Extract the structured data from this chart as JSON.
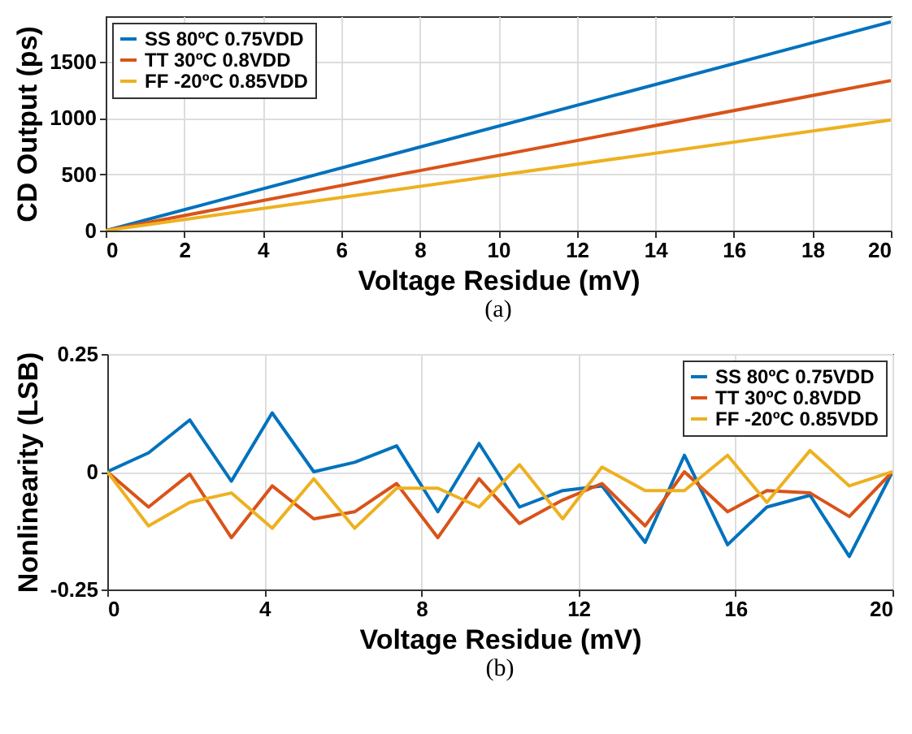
{
  "chart_data": [
    {
      "type": "line",
      "xlabel": "Voltage Residue (mV)",
      "ylabel": "CD Output (ps)",
      "annotations": [
        "(a)"
      ],
      "x": [
        0,
        20
      ],
      "series": [
        {
          "name": "SS 80ºC 0.75VDD",
          "color": "#0072bd",
          "values": [
            0,
            1850
          ]
        },
        {
          "name": "TT 30ºC 0.8VDD",
          "color": "#d95319",
          "values": [
            0,
            1330
          ]
        },
        {
          "name": "FF -20ºC 0.85VDD",
          "color": "#edb120",
          "values": [
            0,
            980
          ]
        }
      ],
      "xlim": [
        0,
        20
      ],
      "xticks": [
        0,
        2,
        4,
        6,
        8,
        10,
        12,
        14,
        16,
        18,
        20
      ],
      "ylim": [
        0,
        1900
      ],
      "yticks": [
        0,
        500,
        1000,
        1500
      ],
      "grid": true,
      "legend": "top left",
      "line_style": "solid",
      "marker": "none"
    },
    {
      "type": "line",
      "xlabel": "Voltage Residue (mV)",
      "ylabel": "Nonlinearity (LSB)",
      "annotations": [
        "(b)"
      ],
      "x": [
        0,
        1.05,
        2.1,
        3.16,
        4.2,
        5.26,
        6.3,
        7.37,
        8.42,
        9.47,
        10.5,
        11.6,
        12.6,
        13.7,
        14.7,
        15.8,
        16.8,
        17.9,
        18.9,
        20
      ],
      "series": [
        {
          "name": "SS 80ºC 0.75VDD",
          "color": "#0072bd",
          "values": [
            0,
            0.04,
            0.11,
            -0.02,
            0.125,
            0,
            0.02,
            0.055,
            -0.085,
            0.06,
            -0.075,
            -0.04,
            -0.03,
            -0.15,
            0.035,
            -0.155,
            -0.075,
            -0.05,
            -0.18,
            0
          ]
        },
        {
          "name": "TT 30ºC 0.8VDD",
          "color": "#d95319",
          "values": [
            0,
            -0.075,
            -0.005,
            -0.14,
            -0.03,
            -0.1,
            -0.085,
            -0.025,
            -0.14,
            -0.015,
            -0.11,
            -0.06,
            -0.025,
            -0.115,
            0,
            -0.085,
            -0.04,
            -0.045,
            -0.095,
            0
          ]
        },
        {
          "name": "FF -20ºC 0.85VDD",
          "color": "#edb120",
          "values": [
            0,
            -0.115,
            -0.065,
            -0.045,
            -0.12,
            -0.015,
            -0.12,
            -0.035,
            -0.035,
            -0.075,
            0.015,
            -0.1,
            0.01,
            -0.04,
            -0.04,
            0.035,
            -0.065,
            0.045,
            -0.03,
            0
          ]
        }
      ],
      "xlim": [
        0,
        20
      ],
      "xticks": [
        0,
        4,
        8,
        12,
        16,
        20
      ],
      "ylim": [
        -0.25,
        0.25
      ],
      "yticks": [
        -0.25,
        0,
        0.25
      ],
      "grid": true,
      "legend": "top right",
      "line_style": "solid",
      "marker": "none"
    }
  ]
}
